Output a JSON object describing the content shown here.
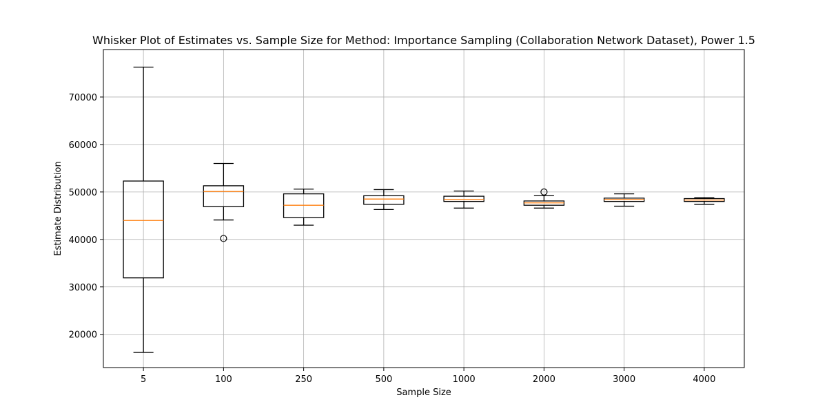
{
  "chart_data": {
    "type": "box",
    "title": "Whisker Plot of Estimates vs. Sample Size for Method: Importance Sampling (Collaboration Network Dataset), Power 1.5",
    "xlabel": "Sample Size",
    "ylabel": "Estimate Distribution",
    "ylim": [
      13000,
      80000
    ],
    "yticks": [
      20000,
      30000,
      40000,
      50000,
      60000,
      70000
    ],
    "grid": true,
    "colors": {
      "box": "#000000",
      "median": "#ff7f0e",
      "grid": "#b0b0b0",
      "outlier": "#000000"
    },
    "categories": [
      "5",
      "100",
      "250",
      "500",
      "1000",
      "2000",
      "3000",
      "4000"
    ],
    "boxes": [
      {
        "whislo": 16200,
        "q1": 31900,
        "med": 44000,
        "q3": 52300,
        "whishi": 76300,
        "fliers": []
      },
      {
        "whislo": 44100,
        "q1": 46900,
        "med": 50100,
        "q3": 51300,
        "whishi": 56000,
        "fliers": [
          40200
        ]
      },
      {
        "whislo": 43000,
        "q1": 44600,
        "med": 47200,
        "q3": 49600,
        "whishi": 50600,
        "fliers": []
      },
      {
        "whislo": 46300,
        "q1": 47400,
        "med": 48500,
        "q3": 49200,
        "whishi": 50500,
        "fliers": []
      },
      {
        "whislo": 46600,
        "q1": 48000,
        "med": 48400,
        "q3": 49100,
        "whishi": 50200,
        "fliers": []
      },
      {
        "whislo": 46600,
        "q1": 47200,
        "med": 47700,
        "q3": 48100,
        "whishi": 49200,
        "fliers": [
          50000
        ]
      },
      {
        "whislo": 47000,
        "q1": 48000,
        "med": 48400,
        "q3": 48700,
        "whishi": 49600,
        "fliers": []
      },
      {
        "whislo": 47400,
        "q1": 48000,
        "med": 48300,
        "q3": 48600,
        "whishi": 48800,
        "fliers": []
      }
    ]
  }
}
